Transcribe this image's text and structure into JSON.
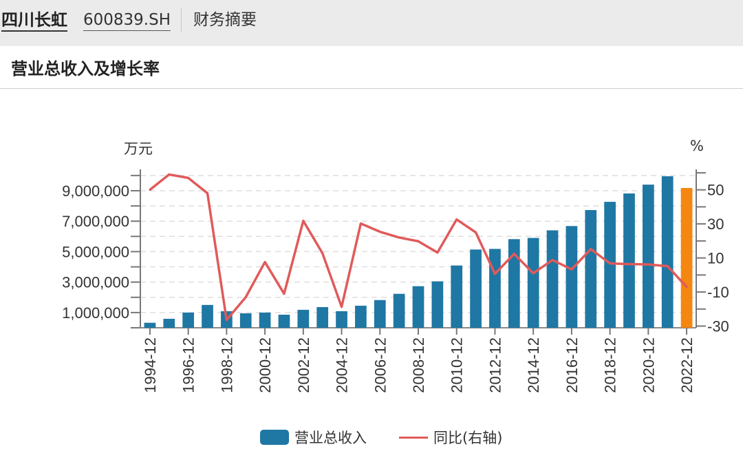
{
  "header": {
    "stock_name": "四川长虹",
    "stock_code": "600839.SH",
    "tab": "财务摘要"
  },
  "section_title": "营业总收入及增长率",
  "colors": {
    "bar": "#1f77a4",
    "bar_highlight": "#f5860f",
    "line": "#e05a5a"
  },
  "chart_data": {
    "type": "bar+line",
    "title": "营业总收入及增长率",
    "ylabel_left": "万元",
    "ylabel_right": "%",
    "ylim_left": [
      0,
      10400000
    ],
    "ylim_right": [
      -31,
      62
    ],
    "left_ticks": [
      "1,000,000",
      "3,000,000",
      "5,000,000",
      "7,000,000",
      "9,000,000"
    ],
    "left_tick_values": [
      1000000,
      3000000,
      5000000,
      7000000,
      9000000
    ],
    "right_ticks": [
      "-30",
      "-10",
      "10",
      "30",
      "50"
    ],
    "right_tick_values": [
      -30,
      -10,
      10,
      30,
      50
    ],
    "categories": [
      "1994-12",
      "1995-12",
      "1996-12",
      "1997-12",
      "1998-12",
      "1999-12",
      "2000-12",
      "2001-12",
      "2002-12",
      "2003-12",
      "2004-12",
      "2005-12",
      "2006-12",
      "2007-12",
      "2008-12",
      "2009-12",
      "2010-12",
      "2011-12",
      "2012-12",
      "2013-12",
      "2014-12",
      "2015-12",
      "2016-12",
      "2017-12",
      "2018-12",
      "2019-12",
      "2020-12",
      "2021-12",
      "2022-12"
    ],
    "series": [
      {
        "name": "营业总收入",
        "type": "bar",
        "axis": "left",
        "values": [
          330000,
          590000,
          1000000,
          1500000,
          1090000,
          950000,
          1000000,
          860000,
          1180000,
          1360000,
          1090000,
          1450000,
          1820000,
          2230000,
          2730000,
          3050000,
          4090000,
          5140000,
          5180000,
          5820000,
          5900000,
          6400000,
          6680000,
          7730000,
          8270000,
          8820000,
          9400000,
          9950000,
          9180000
        ],
        "highlight_index": 28
      },
      {
        "name": "同比(右轴)",
        "type": "line",
        "axis": "right",
        "values": [
          50,
          59,
          57,
          48,
          -26.4,
          -13,
          7.6,
          -11,
          31.8,
          12.8,
          -18.7,
          30.2,
          25.4,
          22,
          19.8,
          13.2,
          32.6,
          25,
          0.7,
          12.4,
          1,
          8.8,
          3.3,
          15.2,
          6.8,
          6.4,
          6.2,
          5.2,
          -7
        ]
      }
    ],
    "legend": [
      "营业总收入",
      "同比(右轴)"
    ],
    "legend_position": "bottom",
    "grid": "horizontal-dashed"
  }
}
